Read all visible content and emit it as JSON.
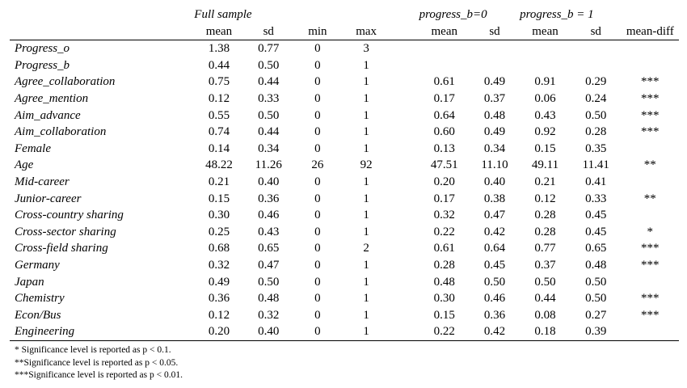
{
  "headers": {
    "group_full": "Full sample",
    "group_p0": "progress_b=0",
    "group_p1": "progress_b = 1",
    "mean": "mean",
    "sd": "sd",
    "min": "min",
    "max": "max",
    "mean_diff": "mean-diff"
  },
  "rows": [
    {
      "label": "Progress_o",
      "mean": "1.38",
      "sd": "0.77",
      "min": "0",
      "max": "3",
      "mean0": "",
      "sd0": "",
      "mean1": "",
      "sd1": "",
      "diff": ""
    },
    {
      "label": "Progress_b",
      "mean": "0.44",
      "sd": "0.50",
      "min": "0",
      "max": "1",
      "mean0": "",
      "sd0": "",
      "mean1": "",
      "sd1": "",
      "diff": ""
    },
    {
      "label": "Agree_collaboration",
      "mean": "0.75",
      "sd": "0.44",
      "min": "0",
      "max": "1",
      "mean0": "0.61",
      "sd0": "0.49",
      "mean1": "0.91",
      "sd1": "0.29",
      "diff": "***"
    },
    {
      "label": "Agree_mention",
      "mean": "0.12",
      "sd": "0.33",
      "min": "0",
      "max": "1",
      "mean0": "0.17",
      "sd0": "0.37",
      "mean1": "0.06",
      "sd1": "0.24",
      "diff": "***"
    },
    {
      "label": "Aim_advance",
      "mean": "0.55",
      "sd": "0.50",
      "min": "0",
      "max": "1",
      "mean0": "0.64",
      "sd0": "0.48",
      "mean1": "0.43",
      "sd1": "0.50",
      "diff": "***"
    },
    {
      "label": "Aim_collaboration",
      "mean": "0.74",
      "sd": "0.44",
      "min": "0",
      "max": "1",
      "mean0": "0.60",
      "sd0": "0.49",
      "mean1": "0.92",
      "sd1": "0.28",
      "diff": "***"
    },
    {
      "label": "Female",
      "mean": "0.14",
      "sd": "0.34",
      "min": "0",
      "max": "1",
      "mean0": "0.13",
      "sd0": "0.34",
      "mean1": "0.15",
      "sd1": "0.35",
      "diff": ""
    },
    {
      "label": "Age",
      "mean": "48.22",
      "sd": "11.26",
      "min": "26",
      "max": "92",
      "mean0": "47.51",
      "sd0": "11.10",
      "mean1": "49.11",
      "sd1": "11.41",
      "diff": "**"
    },
    {
      "label": "Mid-career",
      "mean": "0.21",
      "sd": "0.40",
      "min": "0",
      "max": "1",
      "mean0": "0.20",
      "sd0": "0.40",
      "mean1": "0.21",
      "sd1": "0.41",
      "diff": ""
    },
    {
      "label": "Junior-career",
      "mean": "0.15",
      "sd": "0.36",
      "min": "0",
      "max": "1",
      "mean0": "0.17",
      "sd0": "0.38",
      "mean1": "0.12",
      "sd1": "0.33",
      "diff": "**"
    },
    {
      "label": "Cross-country sharing",
      "mean": "0.30",
      "sd": "0.46",
      "min": "0",
      "max": "1",
      "mean0": "0.32",
      "sd0": "0.47",
      "mean1": "0.28",
      "sd1": "0.45",
      "diff": ""
    },
    {
      "label": "Cross-sector sharing",
      "mean": "0.25",
      "sd": "0.43",
      "min": "0",
      "max": "1",
      "mean0": "0.22",
      "sd0": "0.42",
      "mean1": "0.28",
      "sd1": "0.45",
      "diff": "*"
    },
    {
      "label": "Cross-field sharing",
      "mean": "0.68",
      "sd": "0.65",
      "min": "0",
      "max": "2",
      "mean0": "0.61",
      "sd0": "0.64",
      "mean1": "0.77",
      "sd1": "0.65",
      "diff": "***"
    },
    {
      "label": "Germany",
      "mean": "0.32",
      "sd": "0.47",
      "min": "0",
      "max": "1",
      "mean0": "0.28",
      "sd0": "0.45",
      "mean1": "0.37",
      "sd1": "0.48",
      "diff": "***"
    },
    {
      "label": "Japan",
      "mean": "0.49",
      "sd": "0.50",
      "min": "0",
      "max": "1",
      "mean0": "0.48",
      "sd0": "0.50",
      "mean1": "0.50",
      "sd1": "0.50",
      "diff": ""
    },
    {
      "label": "Chemistry",
      "mean": "0.36",
      "sd": "0.48",
      "min": "0",
      "max": "1",
      "mean0": "0.30",
      "sd0": "0.46",
      "mean1": "0.44",
      "sd1": "0.50",
      "diff": "***"
    },
    {
      "label": "Econ/Bus",
      "mean": "0.12",
      "sd": "0.32",
      "min": "0",
      "max": "1",
      "mean0": "0.15",
      "sd0": "0.36",
      "mean1": "0.08",
      "sd1": "0.27",
      "diff": "***"
    },
    {
      "label": "Engineering",
      "mean": "0.20",
      "sd": "0.40",
      "min": "0",
      "max": "1",
      "mean0": "0.22",
      "sd0": "0.42",
      "mean1": "0.18",
      "sd1": "0.39",
      "diff": ""
    }
  ],
  "notes": [
    "* Significance level is reported as p < 0.1.",
    "**Significance level is reported as p < 0.05.",
    "***Significance level is reported as p < 0.01."
  ]
}
